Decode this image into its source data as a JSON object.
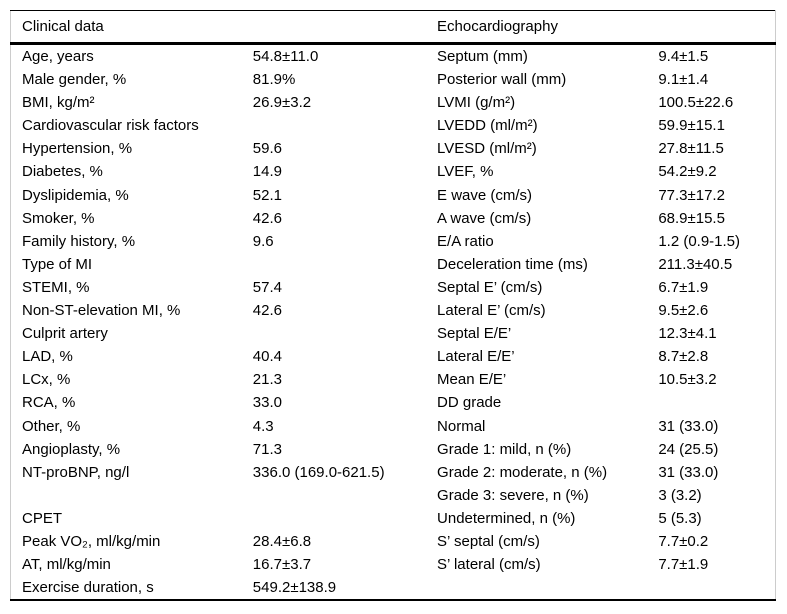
{
  "page": {
    "background": "#ffffff",
    "text_color": "#000000",
    "rule_color": "#000000",
    "frame_color": "#cccccc"
  },
  "table": {
    "headers": {
      "left": "Clinical data",
      "right": "Echocardiography"
    },
    "rows": [
      {
        "label_l": "Age, years",
        "value_l": "54.8±11.0",
        "label_r": "Septum (mm)",
        "value_r": "9.4±1.5"
      },
      {
        "label_l": "Male gender, %",
        "value_l": "81.9%",
        "label_r": "Posterior wall (mm)",
        "value_r": "9.1±1.4"
      },
      {
        "label_l": "BMI, kg/m²",
        "value_l": "26.9±3.2",
        "label_r": "LVMI (g/m²)",
        "value_r": "100.5±22.6"
      },
      {
        "label_l": "Cardiovascular risk factors",
        "value_l": "",
        "label_r": "LVEDD (ml/m²)",
        "value_r": "59.9±15.1"
      },
      {
        "label_l": "Hypertension, %",
        "value_l": "59.6",
        "label_r": "LVESD (ml/m²)",
        "value_r": "27.8±11.5"
      },
      {
        "label_l": "Diabetes, %",
        "value_l": "14.9",
        "label_r": "LVEF, %",
        "value_r": "54.2±9.2"
      },
      {
        "label_l": "Dyslipidemia, %",
        "value_l": "52.1",
        "label_r": "E wave (cm/s)",
        "value_r": "77.3±17.2"
      },
      {
        "label_l": "Smoker, %",
        "value_l": "42.6",
        "label_r": "A wave (cm/s)",
        "value_r": "68.9±15.5"
      },
      {
        "label_l": "Family history, %",
        "value_l": "9.6",
        "label_r": "E/A ratio",
        "value_r": "1.2 (0.9-1.5)"
      },
      {
        "label_l": "Type of MI",
        "value_l": "",
        "label_r": "Deceleration time (ms)",
        "value_r": "211.3±40.5"
      },
      {
        "label_l": "STEMI, %",
        "value_l": "57.4",
        "label_r": "Septal E’ (cm/s)",
        "value_r": "6.7±1.9"
      },
      {
        "label_l": "Non-ST-elevation MI, %",
        "value_l": "42.6",
        "label_r": "Lateral E’ (cm/s)",
        "value_r": "9.5±2.6"
      },
      {
        "label_l": "Culprit artery",
        "value_l": "",
        "label_r": "Septal E/E’",
        "value_r": "12.3±4.1"
      },
      {
        "label_l": "LAD, %",
        "value_l": "40.4",
        "label_r": "Lateral E/E’",
        "value_r": "8.7±2.8"
      },
      {
        "label_l": "LCx, %",
        "value_l": "21.3",
        "label_r": "Mean E/E’",
        "value_r": "10.5±3.2"
      },
      {
        "label_l": "RCA, %",
        "value_l": "33.0",
        "label_r": "DD grade",
        "value_r": ""
      },
      {
        "label_l": "Other, %",
        "value_l": "4.3",
        "label_r": "Normal",
        "value_r": "31 (33.0)"
      },
      {
        "label_l": "Angioplasty, %",
        "value_l": "71.3",
        "label_r": "Grade 1: mild, n (%)",
        "value_r": "24 (25.5)"
      },
      {
        "label_l": "NT-proBNP, ng/l",
        "value_l": "336.0 (169.0-621.5)",
        "label_r": "Grade 2: moderate, n (%)",
        "value_r": "31 (33.0)"
      },
      {
        "label_l": "",
        "value_l": "",
        "label_r": "Grade 3: severe, n (%)",
        "value_r": "3 (3.2)"
      },
      {
        "label_l": "CPET",
        "value_l": "",
        "label_r": "Undetermined, n (%)",
        "value_r": "5 (5.3)"
      },
      {
        "label_l": "Peak VO₂, ml/kg/min",
        "value_l": "28.4±6.8",
        "label_r": "S’ septal (cm/s)",
        "value_r": "7.7±0.2"
      },
      {
        "label_l": "AT, ml/kg/min",
        "value_l": "16.7±3.7",
        "label_r": "S’ lateral (cm/s)",
        "value_r": "7.7±1.9"
      },
      {
        "label_l": "Exercise duration, s",
        "value_l": "549.2±138.9",
        "label_r": "",
        "value_r": ""
      }
    ]
  }
}
